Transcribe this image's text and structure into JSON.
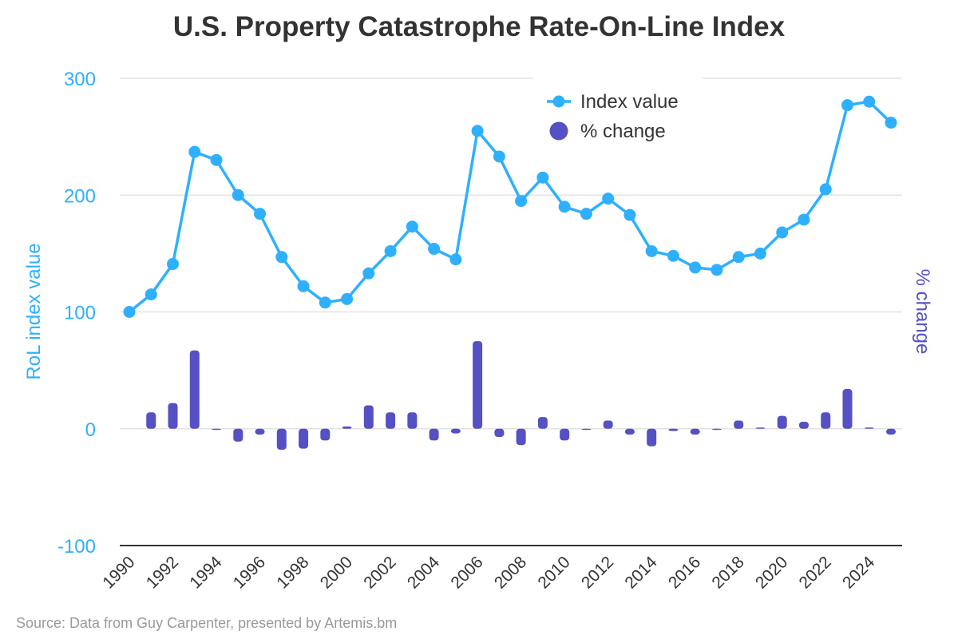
{
  "chart_data": {
    "type": "line+bar",
    "title": "U.S. Property Catastrophe Rate-On-Line Index",
    "ylabel": "RoL index value",
    "y2label": "% change",
    "ylim": [
      -100,
      300
    ],
    "yticks": [
      300,
      200,
      100,
      0,
      -100
    ],
    "xticks": [
      1990,
      1992,
      1994,
      1996,
      1998,
      2000,
      2002,
      2004,
      2006,
      2008,
      2010,
      2012,
      2014,
      2016,
      2018,
      2020,
      2022,
      2024
    ],
    "grid": true,
    "legend_position": "top-right",
    "x": [
      1990,
      1991,
      1992,
      1993,
      1994,
      1995,
      1996,
      1997,
      1998,
      1999,
      2000,
      2001,
      2002,
      2003,
      2004,
      2005,
      2006,
      2007,
      2008,
      2009,
      2010,
      2011,
      2012,
      2013,
      2014,
      2015,
      2016,
      2017,
      2018,
      2019,
      2020,
      2021,
      2022,
      2023,
      2024,
      2025
    ],
    "series": [
      {
        "name": "Index value",
        "type": "line",
        "color": "#2eb0ff",
        "values": [
          100,
          115,
          141,
          237,
          230,
          200,
          184,
          147,
          122,
          108,
          111,
          133,
          152,
          173,
          154,
          145,
          255,
          233,
          195,
          215,
          190,
          184,
          197,
          183,
          152,
          148,
          138,
          136,
          147,
          150,
          168,
          179,
          205,
          277,
          280,
          262
        ]
      },
      {
        "name": "% change",
        "type": "bar",
        "color": "#5550c4",
        "values": [
          null,
          14,
          22,
          67,
          -1,
          -11,
          -5,
          -18,
          -17,
          -10,
          2,
          20,
          14,
          14,
          -10,
          -4,
          75,
          -7,
          -14,
          10,
          -10,
          -1,
          7,
          -5,
          -15,
          -2,
          -5,
          -1,
          7,
          1,
          11,
          6,
          14,
          34,
          1,
          -5
        ]
      }
    ]
  },
  "source": "Source: Data from Guy Carpenter, presented by Artemis.bm"
}
